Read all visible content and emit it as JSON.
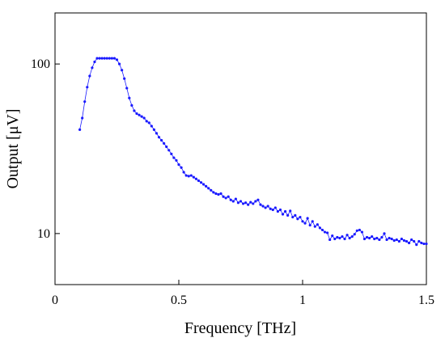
{
  "chart_data": {
    "type": "line",
    "xlabel": "Frequency [THz]",
    "ylabel": "Output [μV]",
    "xlim": [
      0,
      1.5
    ],
    "xticks": [
      0,
      0.5,
      1,
      1.5
    ],
    "ylim": [
      5,
      200
    ],
    "yticks": [
      10,
      100
    ],
    "yscale": "log",
    "x": [
      0.1,
      0.11,
      0.12,
      0.13,
      0.14,
      0.15,
      0.16,
      0.17,
      0.18,
      0.19,
      0.2,
      0.21,
      0.22,
      0.23,
      0.24,
      0.25,
      0.26,
      0.27,
      0.28,
      0.29,
      0.3,
      0.31,
      0.32,
      0.33,
      0.34,
      0.35,
      0.36,
      0.37,
      0.38,
      0.39,
      0.4,
      0.41,
      0.42,
      0.43,
      0.44,
      0.45,
      0.46,
      0.47,
      0.48,
      0.49,
      0.5,
      0.51,
      0.52,
      0.53,
      0.54,
      0.55,
      0.56,
      0.57,
      0.58,
      0.59,
      0.6,
      0.61,
      0.62,
      0.63,
      0.64,
      0.65,
      0.66,
      0.67,
      0.68,
      0.69,
      0.7,
      0.71,
      0.72,
      0.73,
      0.74,
      0.75,
      0.76,
      0.77,
      0.78,
      0.79,
      0.8,
      0.81,
      0.82,
      0.83,
      0.84,
      0.85,
      0.86,
      0.87,
      0.88,
      0.89,
      0.9,
      0.91,
      0.92,
      0.93,
      0.94,
      0.95,
      0.96,
      0.97,
      0.98,
      0.99,
      1.0,
      1.01,
      1.02,
      1.03,
      1.04,
      1.05,
      1.06,
      1.07,
      1.08,
      1.09,
      1.1,
      1.11,
      1.12,
      1.13,
      1.14,
      1.15,
      1.16,
      1.17,
      1.18,
      1.19,
      1.2,
      1.21,
      1.22,
      1.23,
      1.24,
      1.25,
      1.26,
      1.27,
      1.28,
      1.29,
      1.3,
      1.31,
      1.32,
      1.33,
      1.34,
      1.35,
      1.36,
      1.37,
      1.38,
      1.39,
      1.4,
      1.41,
      1.42,
      1.43,
      1.44,
      1.45,
      1.46,
      1.47,
      1.48,
      1.49,
      1.5
    ],
    "series": [
      {
        "color": "#1a1aff",
        "values": [
          41,
          48,
          60,
          73,
          85,
          95,
          103,
          108,
          108,
          108,
          108,
          108,
          108,
          108,
          108,
          106,
          100,
          92,
          82,
          72,
          63,
          57,
          53,
          51,
          50,
          49,
          48,
          46,
          45,
          43,
          41,
          39,
          37,
          35.5,
          34,
          32.5,
          31,
          29.5,
          28,
          27,
          25.5,
          24.5,
          23,
          22,
          21.8,
          22,
          21.5,
          21,
          20.5,
          20,
          19.5,
          19,
          18.5,
          18,
          17.5,
          17.2,
          17,
          17.2,
          16.5,
          16.2,
          16.5,
          15.8,
          15.5,
          16,
          15.2,
          15.5,
          15,
          15.2,
          14.8,
          15.3,
          15,
          15.5,
          15.8,
          14.8,
          14.5,
          14.2,
          14.5,
          14,
          13.8,
          14.2,
          13.5,
          13.8,
          13,
          13.5,
          12.8,
          13.6,
          12.5,
          12.8,
          12.2,
          12.5,
          11.8,
          11.5,
          12.3,
          11.2,
          11.8,
          11,
          11.3,
          10.8,
          10.5,
          10.2,
          10.1,
          9.2,
          9.7,
          9.3,
          9.5,
          9.4,
          9.6,
          9.3,
          9.8,
          9.4,
          9.6,
          9.9,
          10.4,
          10.5,
          10.2,
          9.3,
          9.5,
          9.4,
          9.6,
          9.3,
          9.4,
          9.2,
          9.5,
          10,
          9.2,
          9.4,
          9.3,
          9.1,
          9.2,
          9.0,
          9.3,
          9.1,
          9.0,
          8.8,
          9.2,
          9.0,
          8.6,
          9.0,
          8.8,
          8.7,
          8.7
        ]
      }
    ]
  }
}
